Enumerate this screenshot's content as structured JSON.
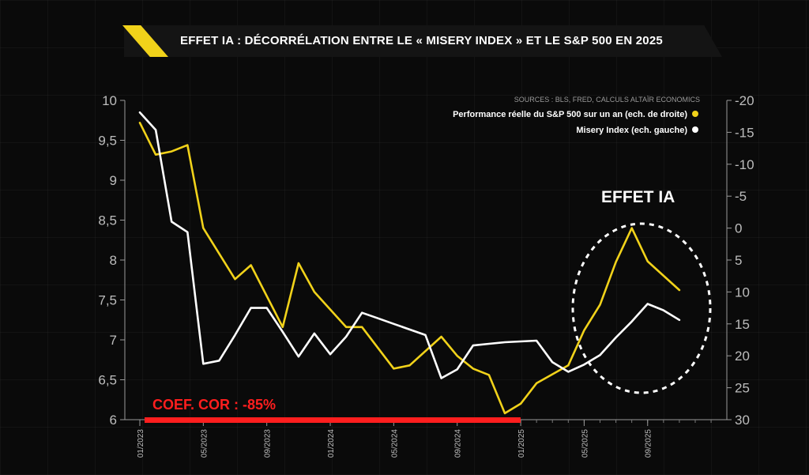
{
  "title": "EFFET IA : DÉCORRÉLATION ENTRE LE  « MISERY INDEX » ET LE S&P 500 EN 2025",
  "colors": {
    "sp500": "#f1d21a",
    "misery": "#ffffff",
    "coef": "#ff1e1e",
    "background": "#0a0a0a"
  },
  "chart_data": {
    "type": "line",
    "sources": "SOURCES : BLS, FRED, CALCULS ALTAÏR ECONOMICS",
    "annotations": {
      "effet_ia": "EFFET IA",
      "coef": "COEF. COR : -85%"
    },
    "x_ticks": [
      "01/2023",
      "05/2023",
      "09/2023",
      "01/2024",
      "05/2024",
      "09/2024",
      "01/2025",
      "05/2025",
      "09/2025"
    ],
    "x_range": [
      0,
      35
    ],
    "y_left": {
      "range": [
        6,
        10
      ],
      "ticks": [
        "10",
        "9,5",
        "9",
        "8,5",
        "8",
        "7,5",
        "7",
        "6,5",
        "6"
      ]
    },
    "y_right": {
      "range": [
        -20,
        30
      ],
      "inverted": true,
      "ticks": [
        "-20",
        "-15",
        "-10",
        "-5",
        "0",
        "5",
        "10",
        "15",
        "20",
        "25",
        "30"
      ]
    },
    "series": [
      {
        "name": "Performance réelle du S&P 500 sur un an (ech. de droite)",
        "axis": "right",
        "x": [
          0,
          1,
          2,
          3,
          4,
          6,
          7,
          9,
          10,
          11,
          13,
          14,
          16,
          17,
          19,
          20,
          21,
          22,
          23,
          24,
          25,
          27,
          28,
          29,
          30,
          31,
          32,
          34
        ],
        "y": [
          -16.5,
          -11.5,
          -12,
          -13,
          0,
          8,
          5.8,
          15.5,
          5.5,
          10,
          15.5,
          15.5,
          22,
          21.5,
          17,
          20,
          22,
          23,
          29,
          27.5,
          24.3,
          21.5,
          16,
          12,
          5.3,
          0,
          5.2,
          9.7
        ]
      },
      {
        "name": "Misery Index (ech. gauche)",
        "axis": "left",
        "x": [
          0,
          1,
          2,
          3,
          4,
          5,
          6,
          7,
          8,
          9,
          10,
          11,
          12,
          13,
          14,
          15,
          16,
          17,
          18,
          19,
          20,
          21,
          22,
          23,
          24,
          25,
          26,
          27,
          28,
          29,
          30,
          31,
          32,
          33,
          34
        ],
        "y": [
          9.85,
          9.63,
          8.48,
          8.35,
          6.7,
          6.74,
          7.06,
          7.4,
          7.4,
          7.1,
          6.79,
          7.08,
          6.82,
          7.04,
          7.34,
          7.27,
          7.2,
          7.13,
          7.06,
          6.52,
          6.63,
          6.93,
          6.95,
          6.97,
          6.98,
          6.99,
          6.72,
          6.6,
          6.69,
          6.81,
          7.03,
          7.23,
          7.45,
          7.37,
          7.25
        ]
      }
    ]
  }
}
